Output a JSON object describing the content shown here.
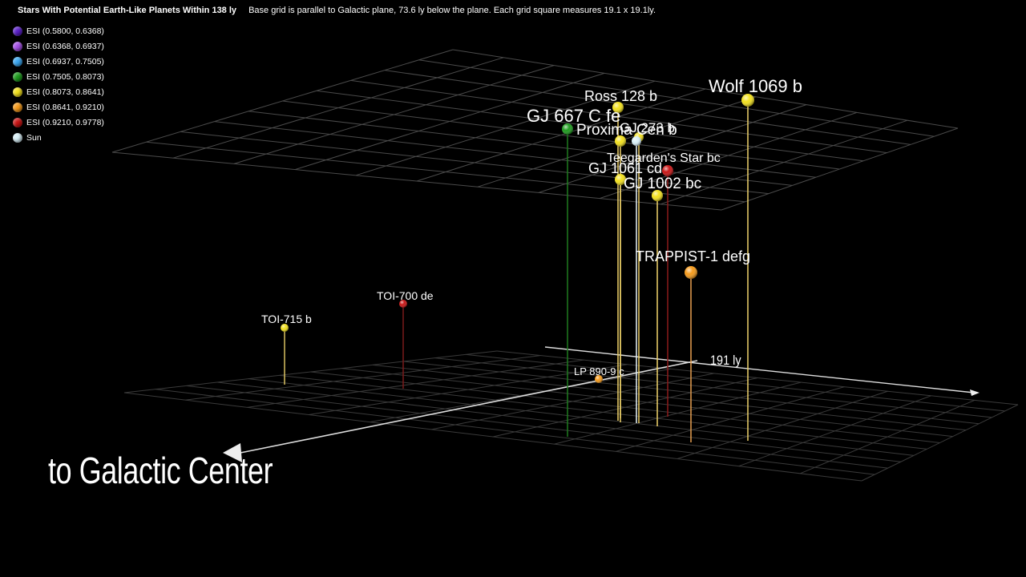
{
  "header": {
    "title": "Stars With Potential Earth-Like Planets Within 138 ly",
    "subtitle": "Base grid is parallel to Galactic plane, 73.6 ly below the plane.  Each grid square measures 19.1 x 19.1ly."
  },
  "legend": [
    {
      "label": "ESI (0.5800, 0.6368)",
      "color": "#5a1fc8"
    },
    {
      "label": "ESI (0.6368, 0.6937)",
      "color": "#a44fe6"
    },
    {
      "label": "ESI (0.6937, 0.7505)",
      "color": "#3aa6f0"
    },
    {
      "label": "ESI (0.7505, 0.8073)",
      "color": "#1c9a1c"
    },
    {
      "label": "ESI (0.8073, 0.8641)",
      "color": "#f2e01c"
    },
    {
      "label": "ESI (0.8641, 0.9210)",
      "color": "#f59a1a"
    },
    {
      "label": "ESI (0.9210, 0.9778)",
      "color": "#c81414"
    },
    {
      "label": "Sun",
      "color": "#d8f0f8"
    }
  ],
  "axis_labels": {
    "galactic_center": "to Galactic Center",
    "distance": "191 ly"
  },
  "stars": [
    {
      "name": "Wolf 1069 b",
      "color": "#f2e01c",
      "line": "#f0d36a"
    },
    {
      "name": "Ross 128 b",
      "color": "#f2e01c",
      "line": "#f0d36a"
    },
    {
      "name": "GJ 667 C fe",
      "color": "#1c9a1c",
      "line": "#1f7a1f"
    },
    {
      "name": "Proxima Cen b",
      "color": "#f2e01c",
      "line": "#f0d36a"
    },
    {
      "name": "GJ 273 b",
      "color": "#f2e01c",
      "line": "#f0d36a"
    },
    {
      "name": "Sun",
      "color": "#d8f0f8",
      "line": "#e8f6fb"
    },
    {
      "name": "Teegarden's Star bc",
      "color": "#c81414",
      "line": "#8a1a1a"
    },
    {
      "name": "GJ 1061 cd",
      "color": "#f2e01c",
      "line": "#f0d36a"
    },
    {
      "name": "GJ 1002 bc",
      "color": "#f2e01c",
      "line": "#f0d36a"
    },
    {
      "name": "TRAPPIST-1 defg",
      "color": "#f59a1a",
      "line": "#e8a050"
    },
    {
      "name": "TOI-700 de",
      "color": "#c81414",
      "line": "#7a1a1a"
    },
    {
      "name": "TOI-715 b",
      "color": "#f2e01c",
      "line": "#d8c060"
    },
    {
      "name": "LP 890-9 c",
      "color": "#f59a1a",
      "line": "#e8a050"
    }
  ]
}
